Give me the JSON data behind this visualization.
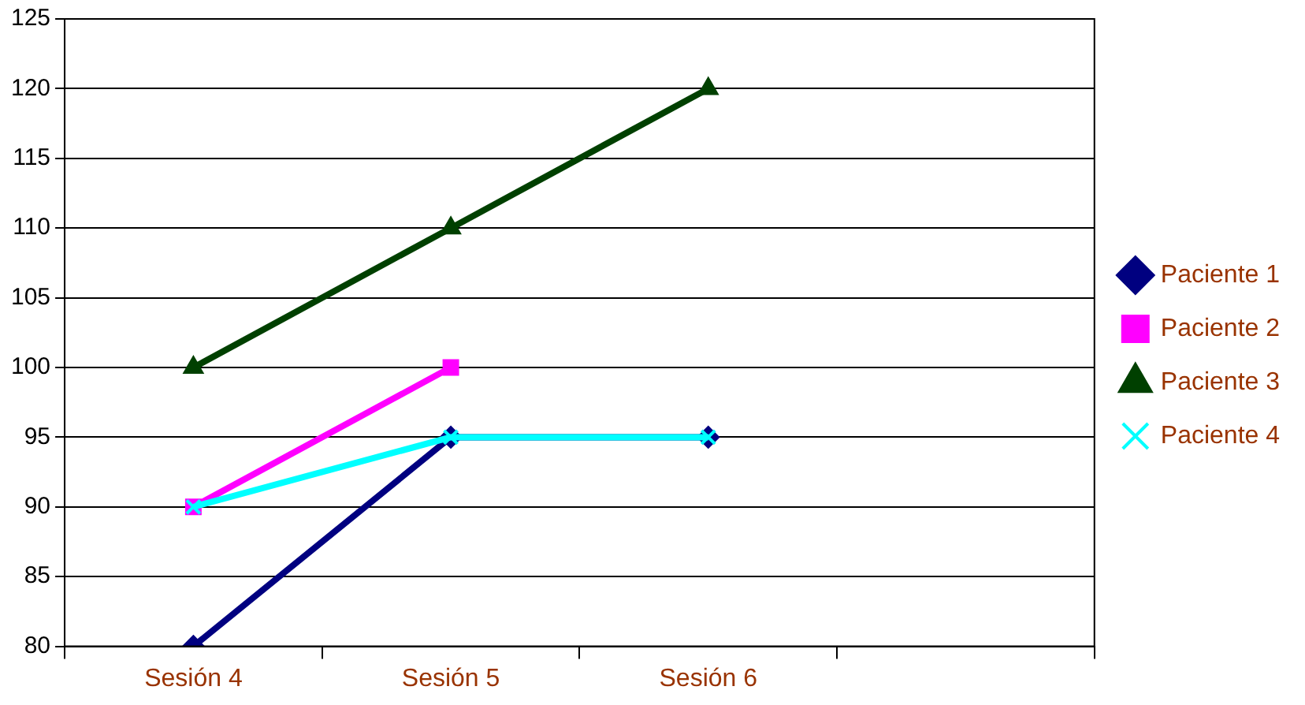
{
  "chart_data": {
    "type": "line",
    "categories": [
      "Sesión 4",
      "Sesión 5",
      "Sesión 6",
      null
    ],
    "series": [
      {
        "name": "Paciente 1",
        "color": "#000080",
        "marker": "diamond",
        "values": [
          80,
          95,
          95,
          null
        ]
      },
      {
        "name": "Paciente 2",
        "color": "#ff00ff",
        "marker": "square",
        "values": [
          90,
          100,
          null,
          null
        ]
      },
      {
        "name": "Paciente 3",
        "color": "#004000",
        "marker": "triangle",
        "values": [
          100,
          110,
          120,
          null
        ]
      },
      {
        "name": "Paciente 4",
        "color": "#00ffff",
        "marker": "cross",
        "values": [
          90,
          95,
          95,
          null
        ]
      }
    ],
    "ylim": [
      80,
      125
    ],
    "yticks": [
      80,
      85,
      90,
      95,
      100,
      105,
      110,
      115,
      120,
      125
    ],
    "grid": "y",
    "legend": "right",
    "line_style": "solid"
  }
}
